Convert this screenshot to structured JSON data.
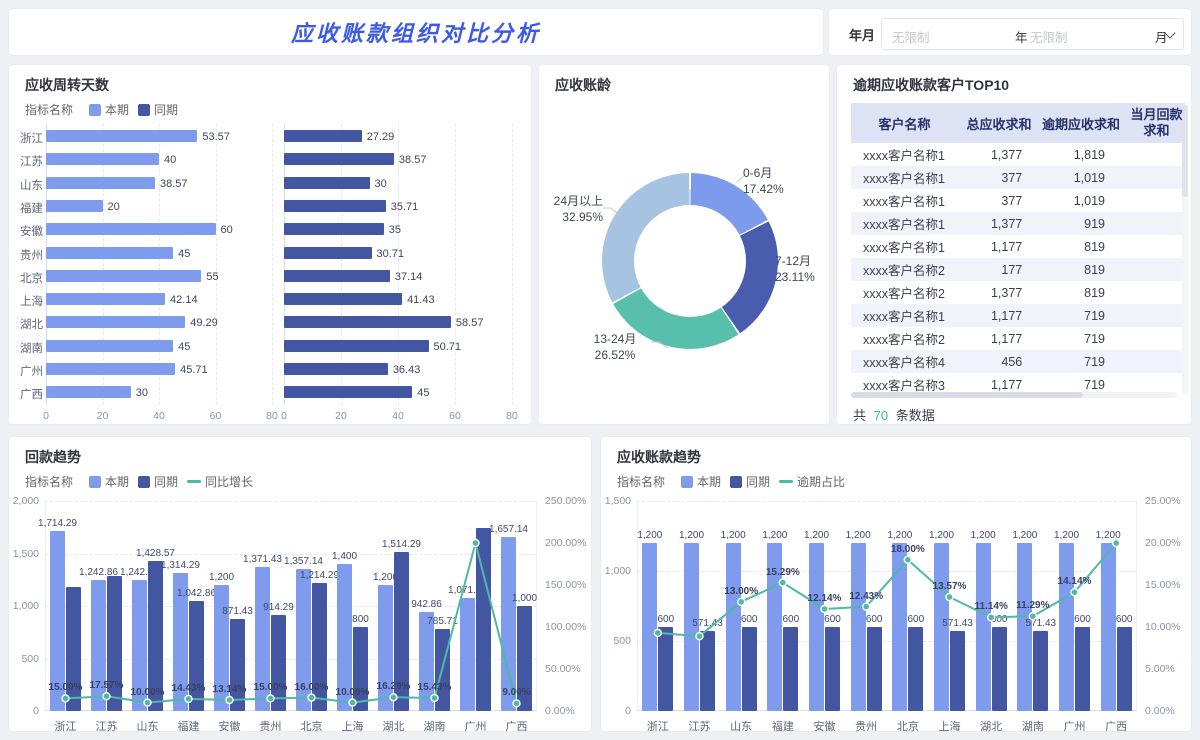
{
  "header": {
    "title": "应收账款组织对比分析",
    "title_color": "#3C5AE6",
    "filter": {
      "label": "年月",
      "year_value": "无限制",
      "year_unit": "年",
      "month_value": "无限制",
      "month_unit": "月"
    }
  },
  "colors": {
    "bar_current": "#7E9BEE",
    "bar_previous": "#4356A2",
    "line_teal": "#4FB9A6",
    "count_teal": "#2FB3BC",
    "table_header_bg": "#DDE2F4"
  },
  "chart_data": [
    {
      "id": "turnover",
      "type": "bar",
      "orientation": "horizontal",
      "title": "应收周转天数",
      "legend_title": "指标名称",
      "categories": [
        "浙江",
        "江苏",
        "山东",
        "福建",
        "安徽",
        "贵州",
        "北京",
        "上海",
        "湖北",
        "湖南",
        "广州",
        "广西"
      ],
      "xlim": [
        0,
        80
      ],
      "xticks": [
        "0",
        "20",
        "40",
        "60",
        "80"
      ],
      "series": [
        {
          "name": "本期",
          "color": "#7E9BEE",
          "values": [
            53.57,
            40,
            38.57,
            20,
            60,
            45,
            55,
            42.14,
            49.29,
            45,
            45.71,
            30
          ],
          "labels": [
            "53.57",
            "40",
            "38.57",
            "20",
            "60",
            "45",
            "55",
            "42.14",
            "49.29",
            "45",
            "45.71",
            "30"
          ]
        },
        {
          "name": "同期",
          "color": "#4356A2",
          "values": [
            27.29,
            38.57,
            30,
            35.71,
            35,
            30.71,
            37.14,
            41.43,
            58.57,
            50.71,
            36.43,
            45
          ],
          "labels": [
            "27.29",
            "38.57",
            "30",
            "35.71",
            "35",
            "30.71",
            "37.14",
            "41.43",
            "58.57",
            "50.71",
            "36.43",
            "45"
          ]
        }
      ]
    },
    {
      "id": "aging",
      "type": "pie",
      "title": "应收账龄",
      "slices": [
        {
          "label": "0-6月",
          "pct": 17.42,
          "pct_label": "17.42%",
          "color": "#7D9BEC"
        },
        {
          "label": "7-12月",
          "pct": 23.11,
          "pct_label": "23.11%",
          "color": "#4A5CAE"
        },
        {
          "label": "13-24月",
          "pct": 26.52,
          "pct_label": "26.52%",
          "color": "#58BFAC"
        },
        {
          "label": "24月以上",
          "pct": 32.95,
          "pct_label": "32.95%",
          "color": "#A6C3E1"
        }
      ]
    },
    {
      "id": "top10",
      "type": "table",
      "title": "逾期应收账款客户TOP10",
      "columns": [
        "客户名称",
        "总应收求和",
        "逾期应收求和",
        "当月回款求和"
      ],
      "rows": [
        [
          "xxxx客户名称1",
          "1,377",
          "1,819",
          ""
        ],
        [
          "xxxx客户名称1",
          "377",
          "1,019",
          ""
        ],
        [
          "xxxx客户名称1",
          "377",
          "1,019",
          ""
        ],
        [
          "xxxx客户名称1",
          "1,377",
          "919",
          ""
        ],
        [
          "xxxx客户名称1",
          "1,177",
          "819",
          ""
        ],
        [
          "xxxx客户名称2",
          "177",
          "819",
          ""
        ],
        [
          "xxxx客户名称2",
          "1,377",
          "819",
          ""
        ],
        [
          "xxxx客户名称1",
          "1,177",
          "719",
          ""
        ],
        [
          "xxxx客户名称2",
          "1,177",
          "719",
          ""
        ],
        [
          "xxxx客户名称4",
          "456",
          "719",
          ""
        ],
        [
          "xxxx客户名称3",
          "1,177",
          "719",
          ""
        ]
      ],
      "footer": {
        "prefix": "共",
        "count": "70",
        "suffix": "条数据"
      }
    },
    {
      "id": "collection_trend",
      "type": "bar-line",
      "title": "回款趋势",
      "legend_title": "指标名称",
      "categories": [
        "浙江",
        "江苏",
        "山东",
        "福建",
        "安徽",
        "贵州",
        "北京",
        "上海",
        "湖北",
        "湖南",
        "广州",
        "广西"
      ],
      "ylim": [
        0,
        2000
      ],
      "yticks": [
        "0",
        "500",
        "1,000",
        "1,500",
        "2,000"
      ],
      "y2lim": [
        0,
        250
      ],
      "y2ticks": [
        "0.00%",
        "50.00%",
        "100.00%",
        "150.00%",
        "200.00%",
        "250.00%"
      ],
      "series": [
        {
          "name": "本期",
          "color": "#7E9BEE",
          "values": [
            1714.29,
            1242.86,
            1242.86,
            1314.29,
            1200,
            1371.43,
            1357.14,
            1400,
            1200,
            942.86,
            1071.43,
            1657.14
          ],
          "labels": [
            "1,714.29",
            "1,242.86",
            "1,242.86",
            "1,314.29",
            "1,200",
            "1,371.43",
            "1,357.14",
            "1,400",
            "1,200",
            "942.86",
            "1,071.43",
            "1,657.14"
          ]
        },
        {
          "name": "同期",
          "color": "#4356A2",
          "values": [
            1185.71,
            1285.71,
            1428.57,
            1042.86,
            871.43,
            914.29,
            1214.29,
            800,
            1514.29,
            785.71,
            1742.86,
            1000
          ],
          "labels": [
            "",
            "",
            "1,428.57",
            "1,042.86",
            "871.43",
            "914.29",
            "1,214.29",
            "800",
            "1,514.29",
            "785.71",
            "",
            "1,000"
          ]
        }
      ],
      "line": {
        "name": "同比增长",
        "color": "#4FB9A6",
        "values": [
          15,
          17.57,
          10,
          14.43,
          13.14,
          15,
          16,
          10,
          16.29,
          15.43,
          200,
          9
        ],
        "labels": [
          "15.00%",
          "17.57%",
          "10.00%",
          "14.43%",
          "13.14%",
          "15.00%",
          "16.00%",
          "10.00%",
          "16.29%",
          "15.43%",
          "",
          "9.00%"
        ]
      }
    },
    {
      "id": "receivable_trend",
      "type": "bar-line",
      "title": "应收账款趋势",
      "legend_title": "指标名称",
      "categories": [
        "浙江",
        "江苏",
        "山东",
        "福建",
        "安徽",
        "贵州",
        "北京",
        "上海",
        "湖北",
        "湖南",
        "广州",
        "广西"
      ],
      "ylim": [
        0,
        1500
      ],
      "yticks": [
        "0",
        "500",
        "1,000",
        "1,500"
      ],
      "y2lim": [
        0,
        25
      ],
      "y2ticks": [
        "0.00%",
        "5.00%",
        "10.00%",
        "15.00%",
        "20.00%",
        "25.00%"
      ],
      "series": [
        {
          "name": "本期",
          "color": "#7E9BEE",
          "values": [
            1200,
            1200,
            1200,
            1200,
            1200,
            1200,
            1200,
            1200,
            1200,
            1200,
            1200,
            1200
          ],
          "labels": [
            "1,200",
            "1,200",
            "1,200",
            "1,200",
            "1,200",
            "1,200",
            "1,200",
            "1,200",
            "1,200",
            "1,200",
            "1,200",
            "1,200"
          ]
        },
        {
          "name": "同期",
          "color": "#4356A2",
          "values": [
            600,
            571.43,
            600,
            600,
            600,
            600,
            600,
            571.43,
            600,
            571.43,
            600,
            600
          ],
          "labels": [
            "600",
            "571.43",
            "600",
            "600",
            "600",
            "600",
            "600",
            "571.43",
            "600",
            "571.43",
            "600",
            "600"
          ]
        }
      ],
      "line": {
        "name": "逾期占比",
        "color": "#4FB9A6",
        "values": [
          9.3,
          8.9,
          13,
          15.29,
          12.14,
          12.43,
          18,
          13.57,
          11.14,
          11.29,
          14.14,
          20
        ],
        "labels": [
          "",
          "",
          "13.00%",
          "15.29%",
          "12.14%",
          "12.43%",
          "18.00%",
          "13.57%",
          "11.14%",
          "11.29%",
          "14.14%",
          ""
        ]
      }
    }
  ]
}
